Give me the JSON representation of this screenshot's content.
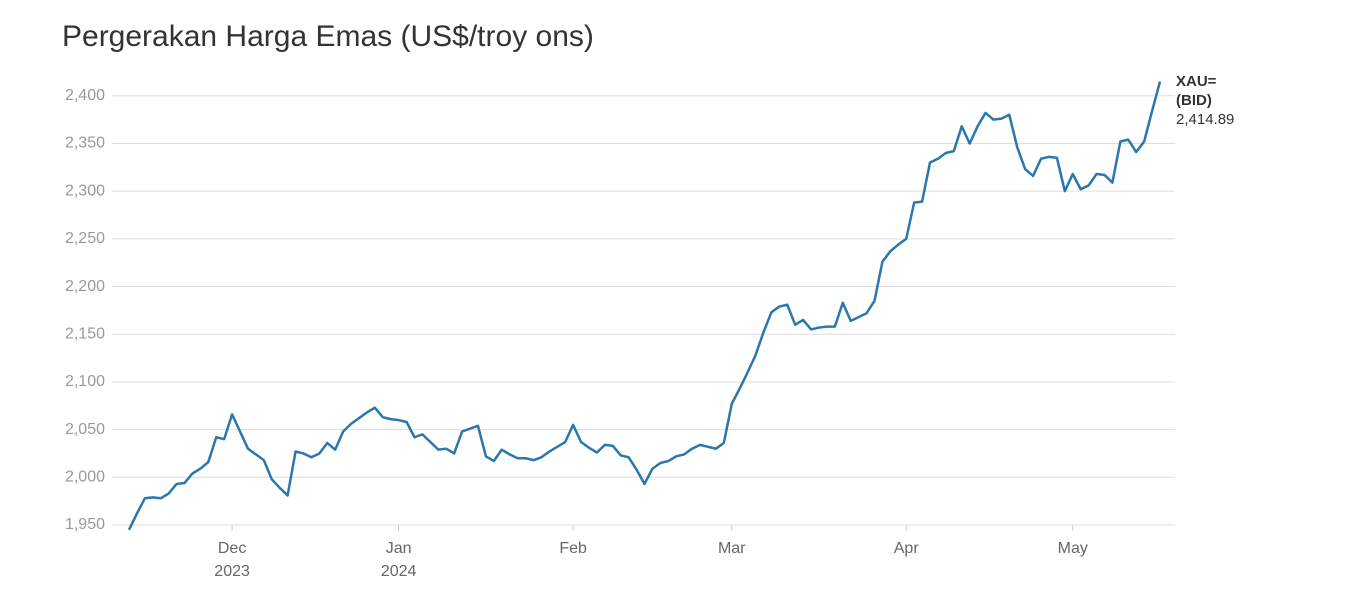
{
  "chart_data": {
    "type": "line",
    "title": "Pergerakan Harga Emas (US$/troy ons)",
    "series": [
      {
        "name": [
          "XAU=",
          "(BID)"
        ],
        "color": "#2a77ad",
        "last_value_label": "2,414.89",
        "values": [
          1945,
          1962,
          1978,
          1979,
          1978,
          1983,
          1993,
          1994,
          2004,
          2009,
          2016,
          2042,
          2040,
          2066,
          2048,
          2030,
          2024,
          2018,
          1998,
          1989,
          1981,
          2027,
          2025,
          2021,
          2025,
          2036,
          2029,
          2048,
          2056,
          2062,
          2068,
          2073,
          2063,
          2061,
          2060,
          2058,
          2042,
          2045,
          2037,
          2029,
          2030,
          2025,
          2048,
          2051,
          2054,
          2022,
          2017,
          2029,
          2024,
          2020,
          2020,
          2018,
          2021,
          2027,
          2032,
          2037,
          2055,
          2037,
          2031,
          2026,
          2034,
          2033,
          2023,
          2021,
          2008,
          1993,
          2009,
          2015,
          2017,
          2022,
          2024,
          2030,
          2034,
          2032,
          2030,
          2036,
          2077,
          2093,
          2110,
          2128,
          2152,
          2173,
          2179,
          2181,
          2160,
          2165,
          2155,
          2157,
          2158,
          2158,
          2183,
          2164,
          2168,
          2172,
          2185,
          2226,
          2237,
          2244,
          2250,
          2288,
          2289,
          2330,
          2334,
          2340,
          2342,
          2368,
          2350,
          2368,
          2382,
          2375,
          2376,
          2380,
          2346,
          2323,
          2316,
          2334,
          2336,
          2335,
          2300,
          2318,
          2302,
          2306,
          2318,
          2317,
          2309,
          2352,
          2354,
          2341,
          2352,
          2384,
          2414.89
        ]
      }
    ],
    "xlim": [
      0,
      130
    ],
    "xticks": [
      {
        "value": 13,
        "label": "Dec",
        "year": "2023"
      },
      {
        "value": 34,
        "label": "Jan",
        "year": "2024"
      },
      {
        "value": 56,
        "label": "Feb"
      },
      {
        "value": 76,
        "label": "Mar"
      },
      {
        "value": 98,
        "label": "Apr"
      },
      {
        "value": 119,
        "label": "May"
      }
    ],
    "ylim": [
      1950,
      2420
    ],
    "yticks": [
      {
        "value": 1950,
        "label": "1,950"
      },
      {
        "value": 2000,
        "label": "2,000"
      },
      {
        "value": 2050,
        "label": "2,050"
      },
      {
        "value": 2100,
        "label": "2,100"
      },
      {
        "value": 2150,
        "label": "2,150"
      },
      {
        "value": 2200,
        "label": "2,200"
      },
      {
        "value": 2250,
        "label": "2,250"
      },
      {
        "value": 2300,
        "label": "2,300"
      },
      {
        "value": 2350,
        "label": "2,350"
      },
      {
        "value": 2400,
        "label": "2,400"
      }
    ],
    "grid": true
  }
}
